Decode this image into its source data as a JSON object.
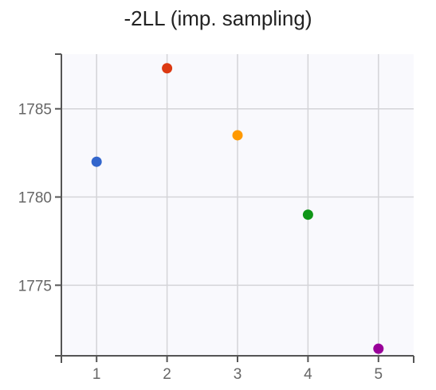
{
  "chart_data": {
    "type": "scatter",
    "title": "-2LL (imp. sampling)",
    "xlabel": "",
    "ylabel": "",
    "x": [
      1,
      2,
      3,
      4,
      5
    ],
    "y": [
      1782.0,
      1787.3,
      1783.5,
      1779.0,
      1771.4
    ],
    "point_colors": [
      "#3366cc",
      "#dc3912",
      "#ff9900",
      "#109618",
      "#990099"
    ],
    "xlim": [
      0.5,
      5.5
    ],
    "ylim": [
      1771.0,
      1788.1
    ],
    "xticks": [
      1,
      2,
      3,
      4,
      5
    ],
    "yticks": [
      1775,
      1780,
      1785
    ],
    "grid": true,
    "legend": "none",
    "plot_background": "#f9f9fd"
  }
}
